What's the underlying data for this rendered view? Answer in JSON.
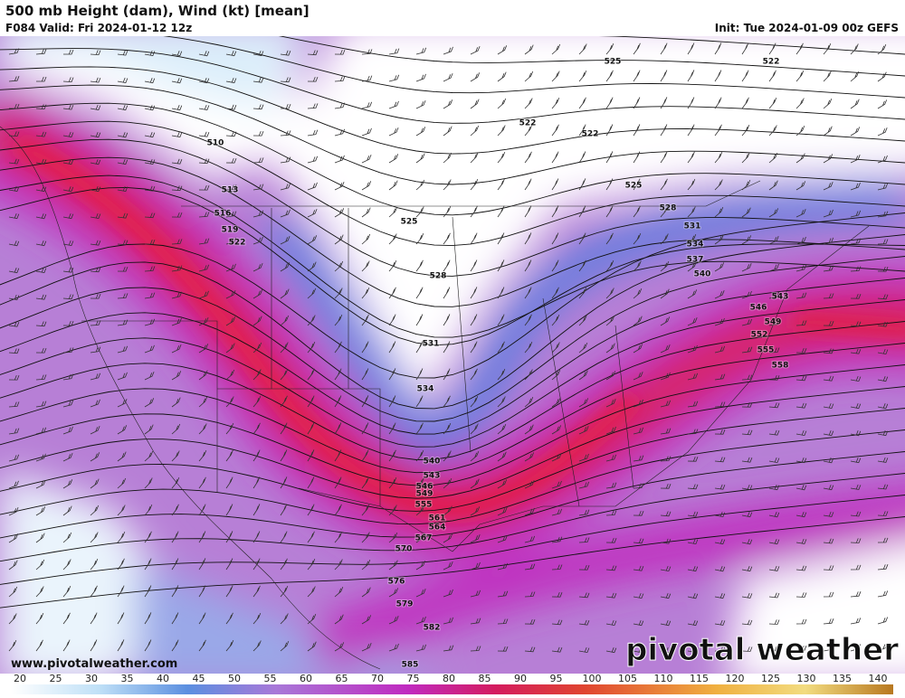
{
  "header": {
    "title": "500 mb Height (dam), Wind (kt) [mean]",
    "valid": "F084 Valid: Fri 2024-01-12 12z",
    "init": "Init: Tue 2024-01-09 00z GEFS"
  },
  "contour_labels": [
    "525",
    "522",
    "522",
    "522",
    "510",
    "513",
    "516",
    "519",
    "522",
    "525",
    "525",
    "528",
    "531",
    "534",
    "537",
    "540",
    "528",
    "531",
    "534",
    "540",
    "543",
    "546",
    "549",
    "555",
    "561",
    "564",
    "567",
    "570",
    "576",
    "579",
    "582",
    "585",
    "543",
    "546",
    "549",
    "552",
    "555",
    "558"
  ],
  "footer": {
    "url": "www.pivotalweather.com",
    "logo": "pivotal weather"
  },
  "colorbar": {
    "ticks": [
      20,
      25,
      30,
      35,
      40,
      45,
      50,
      55,
      60,
      65,
      70,
      75,
      80,
      85,
      90,
      95,
      100,
      105,
      110,
      115,
      120,
      125,
      130,
      135,
      140
    ]
  }
}
